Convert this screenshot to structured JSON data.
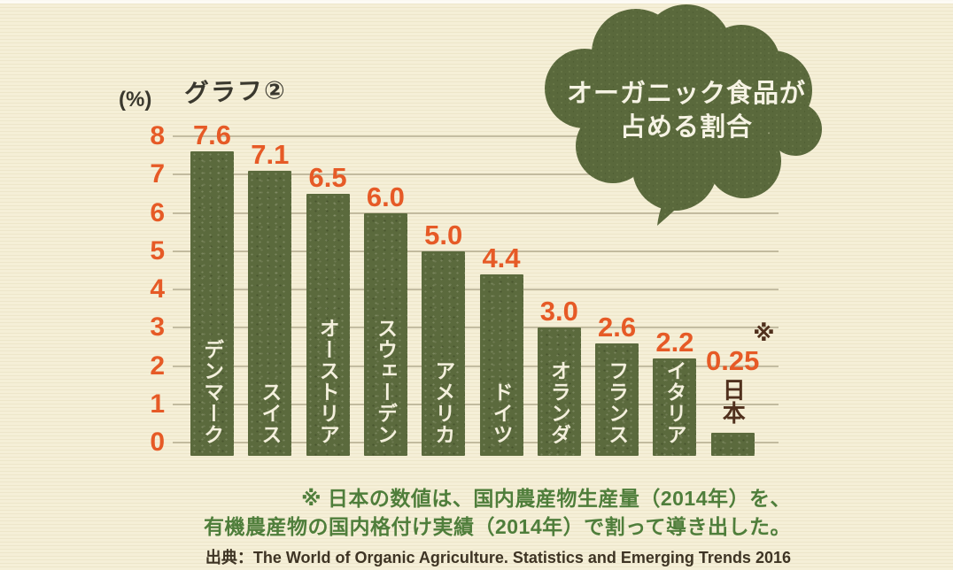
{
  "chart_data": {
    "type": "bar",
    "title": "グラフ②",
    "axis_unit_label": "(%)",
    "ylim": [
      0,
      8
    ],
    "ytick_step": 1,
    "grid": true,
    "legend": "none",
    "categories": [
      "デンマーク",
      "スイス",
      "オーストリア",
      "スウェーデン",
      "アメリカ",
      "ドイツ",
      "オランダ",
      "フランス",
      "イタリア",
      "日本"
    ],
    "values": [
      7.6,
      7.1,
      6.5,
      6.0,
      5.0,
      4.4,
      3.0,
      2.6,
      2.2,
      0.25
    ],
    "items": [
      {
        "label": "デンマーク",
        "value": 7.6,
        "display": "7.6",
        "label_pos": "inside"
      },
      {
        "label": "スイス",
        "value": 7.1,
        "display": "7.1",
        "label_pos": "inside"
      },
      {
        "label": "オーストリア",
        "value": 6.5,
        "display": "6.5",
        "label_pos": "inside"
      },
      {
        "label": "スウェーデン",
        "value": 6.0,
        "display": "6.0",
        "label_pos": "inside"
      },
      {
        "label": "アメリカ",
        "value": 5.0,
        "display": "5.0",
        "label_pos": "inside"
      },
      {
        "label": "ドイツ",
        "value": 4.4,
        "display": "4.4",
        "label_pos": "inside"
      },
      {
        "label": "オランダ",
        "value": 3.0,
        "display": "3.0",
        "label_pos": "inside"
      },
      {
        "label": "フランス",
        "value": 2.6,
        "display": "2.6",
        "label_pos": "inside"
      },
      {
        "label": "イタリア",
        "value": 2.2,
        "display": "2.2",
        "label_pos": "inside"
      },
      {
        "label": "日本",
        "value": 0.25,
        "display": "0.25",
        "label_pos": "above",
        "mark": "※"
      }
    ],
    "colors": {
      "bar": "#5b6a3d",
      "value_text": "#e65a26",
      "ytick_text": "#e65a26",
      "inside_label_text": "#f4f0dd",
      "outside_label_text": "#50301d",
      "title_text": "#3a382e",
      "gridline": "#a8a088",
      "background": "#f5efd7"
    }
  },
  "bubble": {
    "line1": "オーガニック食品が",
    "line2": "占める割合",
    "fill_color": "#5a693c",
    "text_color": "#f6f3e4"
  },
  "footnote": {
    "line1": "※ 日本の数値は、国内農産物生産量（2014年）を、",
    "line2": "有機農産物の国内格付け実績（2014年）で割って導き出した。",
    "source": "出典：The World of Organic Agriculture. Statistics and Emerging Trends 2016",
    "note_color": "#4f7e3b",
    "source_color": "#3e3424"
  }
}
